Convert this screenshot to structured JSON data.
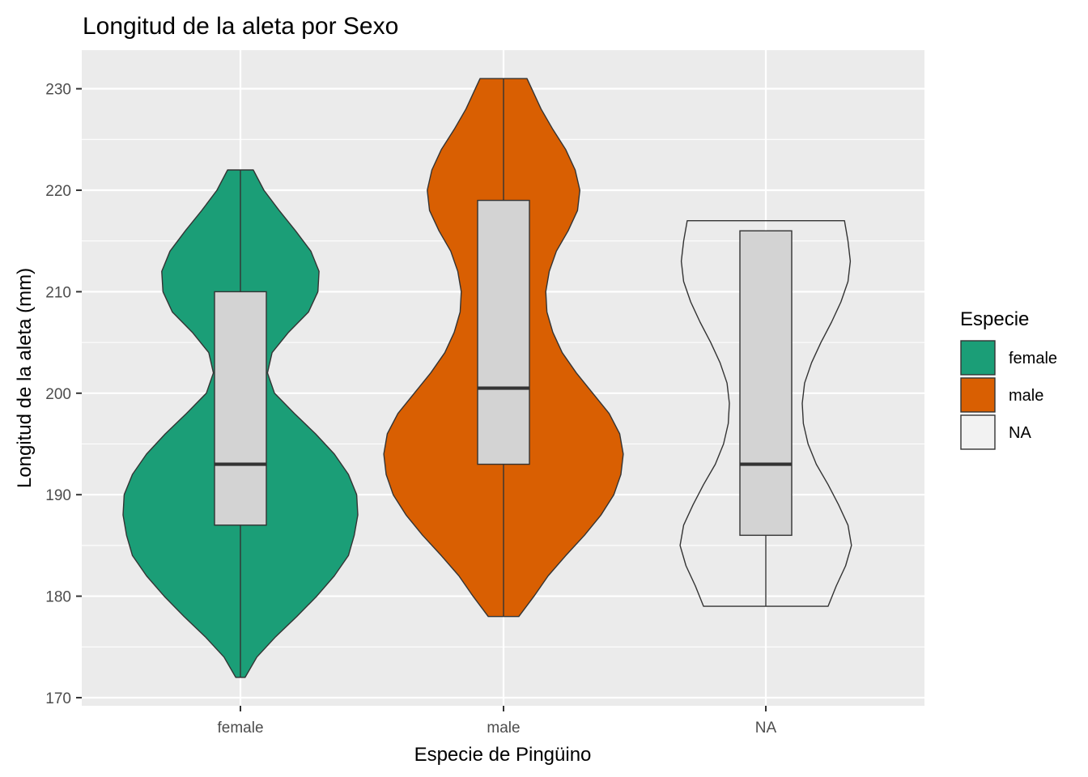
{
  "chart_data": {
    "type": "violin",
    "title": "Longitud de la aleta por Sexo",
    "xlabel": "Especie de Pingüino",
    "ylabel": "Longitud de la aleta (mm)",
    "categories": [
      "female",
      "male",
      "NA"
    ],
    "ylim": [
      169.2,
      233.8
    ],
    "yticks": [
      170,
      180,
      190,
      200,
      210,
      220,
      230
    ],
    "grid": true,
    "legend": {
      "title": "Especie",
      "position": "right",
      "entries": [
        {
          "label": "female",
          "color": "#1B9E77"
        },
        {
          "label": "male",
          "color": "#D95F02"
        },
        {
          "label": "NA",
          "color": "#F2F2F2"
        }
      ]
    },
    "colors": {
      "panel": "#EBEBEB",
      "grid": "#FFFFFF",
      "box_fill": "#D3D3D3",
      "outline": "#333333",
      "tick_text": "#4D4D4D"
    },
    "series": [
      {
        "name": "female",
        "color": "#1B9E77",
        "box": {
          "min": 172,
          "q1": 187,
          "median": 193,
          "q3": 210,
          "max": 222
        },
        "density": [
          [
            172,
            0.04
          ],
          [
            174,
            0.14
          ],
          [
            176,
            0.3
          ],
          [
            178,
            0.48
          ],
          [
            180,
            0.65
          ],
          [
            182,
            0.8
          ],
          [
            184,
            0.92
          ],
          [
            186,
            0.97
          ],
          [
            188,
            1.0
          ],
          [
            190,
            0.99
          ],
          [
            192,
            0.92
          ],
          [
            194,
            0.8
          ],
          [
            196,
            0.64
          ],
          [
            198,
            0.46
          ],
          [
            200,
            0.29
          ],
          [
            202,
            0.23
          ],
          [
            204,
            0.27
          ],
          [
            206,
            0.41
          ],
          [
            208,
            0.58
          ],
          [
            210,
            0.66
          ],
          [
            212,
            0.67
          ],
          [
            214,
            0.6
          ],
          [
            216,
            0.47
          ],
          [
            218,
            0.33
          ],
          [
            220,
            0.2
          ],
          [
            222,
            0.11
          ]
        ]
      },
      {
        "name": "male",
        "color": "#D95F02",
        "box": {
          "min": 178,
          "q1": 193,
          "median": 200.5,
          "q3": 219,
          "max": 231
        },
        "density": [
          [
            178,
            0.13
          ],
          [
            180,
            0.26
          ],
          [
            182,
            0.38
          ],
          [
            184,
            0.53
          ],
          [
            186,
            0.69
          ],
          [
            188,
            0.83
          ],
          [
            190,
            0.94
          ],
          [
            192,
            1.0
          ],
          [
            194,
            1.02
          ],
          [
            196,
            0.99
          ],
          [
            198,
            0.9
          ],
          [
            200,
            0.76
          ],
          [
            202,
            0.62
          ],
          [
            204,
            0.5
          ],
          [
            206,
            0.42
          ],
          [
            208,
            0.37
          ],
          [
            210,
            0.36
          ],
          [
            212,
            0.39
          ],
          [
            214,
            0.45
          ],
          [
            216,
            0.55
          ],
          [
            218,
            0.63
          ],
          [
            220,
            0.65
          ],
          [
            222,
            0.61
          ],
          [
            224,
            0.53
          ],
          [
            226,
            0.42
          ],
          [
            228,
            0.32
          ],
          [
            230,
            0.24
          ],
          [
            231,
            0.2
          ]
        ]
      },
      {
        "name": "NA",
        "color": "#F2F2F2",
        "box": {
          "min": 179,
          "q1": 186,
          "median": 193,
          "q3": 216,
          "max": 216
        },
        "density": [
          [
            179,
            0.53
          ],
          [
            181,
            0.6
          ],
          [
            183,
            0.68
          ],
          [
            185,
            0.73
          ],
          [
            187,
            0.7
          ],
          [
            189,
            0.62
          ],
          [
            191,
            0.53
          ],
          [
            193,
            0.43
          ],
          [
            195,
            0.36
          ],
          [
            197,
            0.32
          ],
          [
            199,
            0.31
          ],
          [
            201,
            0.33
          ],
          [
            203,
            0.39
          ],
          [
            205,
            0.47
          ],
          [
            207,
            0.56
          ],
          [
            209,
            0.64
          ],
          [
            211,
            0.7
          ],
          [
            213,
            0.72
          ],
          [
            215,
            0.7
          ],
          [
            217,
            0.67
          ]
        ]
      }
    ]
  }
}
